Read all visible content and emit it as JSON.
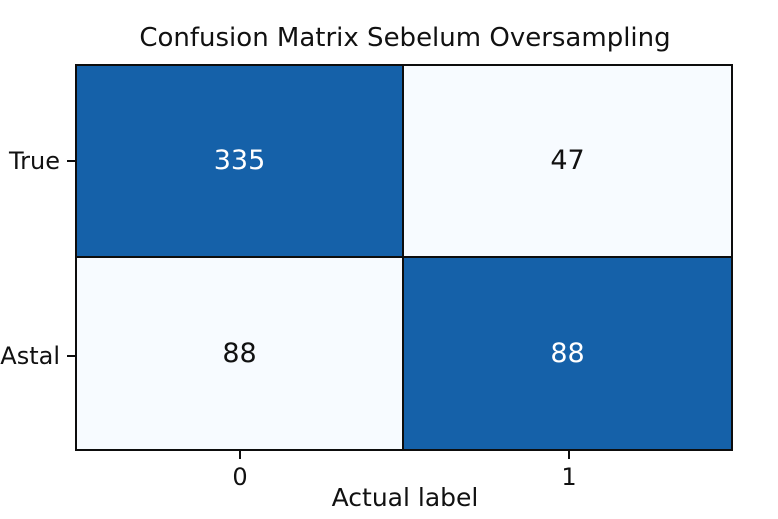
{
  "chart_data": {
    "type": "heatmap",
    "title": "Confusion Matrix Sebelum Oversampling",
    "xlabel": "Actual label",
    "ylabel": "",
    "row_tick_labels": [
      "True",
      "Astal"
    ],
    "col_tick_labels": [
      "0",
      "1"
    ],
    "matrix": [
      [
        335,
        47
      ],
      [
        88,
        88
      ]
    ],
    "legend": "none",
    "grid": "off",
    "colors": {
      "dark_fill": "#1561a9",
      "light_fill": "#f7fbff",
      "border": "#0d0d0d",
      "text_on_dark": "#ffffff",
      "text_on_light": "#111111",
      "axis_text": "#111111",
      "background": "#ffffff"
    },
    "cells": [
      {
        "row": "True",
        "col": "0",
        "value": "335",
        "fill": "#1561a9",
        "text_color": "#ffffff"
      },
      {
        "row": "True",
        "col": "1",
        "value": "47",
        "fill": "#f7fbff",
        "text_color": "#111111"
      },
      {
        "row": "Astal",
        "col": "0",
        "value": "88",
        "fill": "#f7fbff",
        "text_color": "#111111"
      },
      {
        "row": "Astal",
        "col": "1",
        "value": "88",
        "fill": "#1561a9",
        "text_color": "#ffffff"
      }
    ]
  }
}
